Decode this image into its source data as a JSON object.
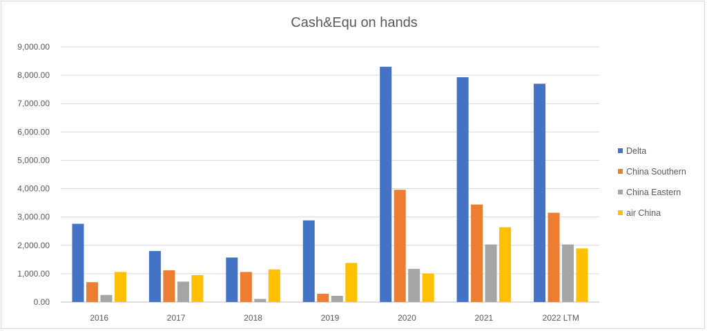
{
  "chart_data": {
    "type": "bar",
    "title": "Cash&Equ on hands",
    "xlabel": "",
    "ylabel": "",
    "categories": [
      "2016",
      "2017",
      "2018",
      "2019",
      "2020",
      "2021",
      "2022 LTM"
    ],
    "y_ticks": [
      "0.00",
      "1,000.00",
      "2,000.00",
      "3,000.00",
      "4,000.00",
      "5,000.00",
      "6,000.00",
      "7,000.00",
      "8,000.00",
      "9,000.00"
    ],
    "ylim": [
      0,
      9000
    ],
    "grid": true,
    "legend_position": "right",
    "series": [
      {
        "name": "Delta",
        "color": "#4472C4",
        "values": [
          2760,
          1800,
          1570,
          2880,
          8300,
          7930,
          7700
        ]
      },
      {
        "name": "China Southern",
        "color": "#ED7D31",
        "values": [
          700,
          1120,
          1060,
          290,
          3960,
          3440,
          3150
        ]
      },
      {
        "name": "China Eastern",
        "color": "#A5A5A5",
        "values": [
          250,
          720,
          110,
          220,
          1170,
          2030,
          2030
        ]
      },
      {
        "name": "air China",
        "color": "#FFC000",
        "values": [
          1060,
          950,
          1150,
          1380,
          1010,
          2640,
          1890
        ]
      }
    ]
  }
}
